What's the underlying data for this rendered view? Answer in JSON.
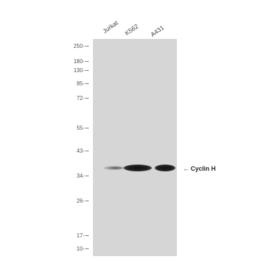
{
  "lanes": [
    {
      "label": "Jurkat"
    },
    {
      "label": "K562"
    },
    {
      "label": "A431"
    }
  ],
  "markers": [
    "250-",
    "180-",
    "130-",
    "95-",
    "72-",
    "55-",
    "43-",
    "34-",
    "26-",
    "17-",
    "10-"
  ],
  "band_annotation": {
    "arrow": "←",
    "label": "Cyclin H"
  },
  "colors": {
    "membrane": "#d6d6d6",
    "band": "#1a1a1a"
  }
}
